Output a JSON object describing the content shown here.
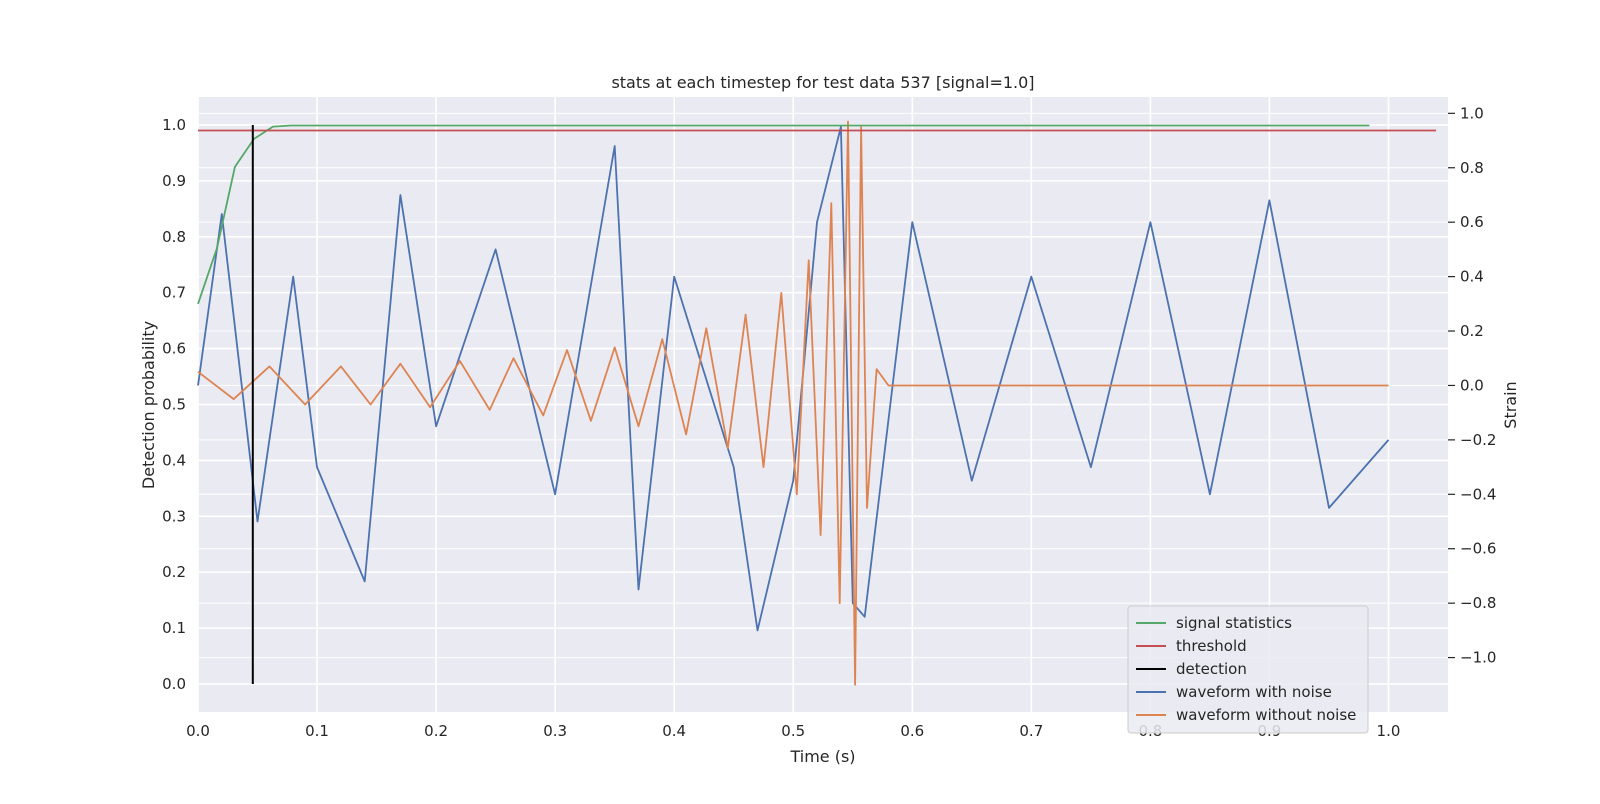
{
  "chart_data": {
    "type": "line",
    "title": "stats at each timestep for test data 537 [signal=1.0]",
    "xlabel": "Time (s)",
    "ylabel": "Detection probability",
    "y2label": "Strain",
    "xlim": [
      0.0,
      1.05
    ],
    "ylim": [
      -0.05,
      1.05
    ],
    "y2lim": [
      -1.2,
      1.06
    ],
    "xticks": [
      "0.0",
      "0.1",
      "0.2",
      "0.3",
      "0.4",
      "0.5",
      "0.6",
      "0.7",
      "0.8",
      "0.9",
      "1.0"
    ],
    "yticks": [
      "0.0",
      "0.1",
      "0.2",
      "0.3",
      "0.4",
      "0.5",
      "0.6",
      "0.7",
      "0.8",
      "0.9",
      "1.0"
    ],
    "y2ticks": [
      "−1.0",
      "−0.8",
      "−0.6",
      "−0.4",
      "−0.2",
      "0.0",
      "0.2",
      "0.4",
      "0.6",
      "0.8",
      "1.0"
    ],
    "grid": true,
    "legend_position": "lower-right",
    "background": "#eaeaf2",
    "series": [
      {
        "name": "signal statistics",
        "axis": "left",
        "color": "#55a868",
        "x": [
          0.0,
          0.016,
          0.031,
          0.047,
          0.063,
          0.078,
          0.1,
          0.3,
          0.5,
          0.7,
          0.9,
          0.984
        ],
        "y": [
          0.68,
          0.78,
          0.925,
          0.975,
          0.997,
          0.999,
          0.999,
          0.999,
          0.999,
          0.999,
          0.999,
          0.999
        ]
      },
      {
        "name": "threshold",
        "axis": "left",
        "color": "#c44e52",
        "x": [
          0.0,
          1.04
        ],
        "y": [
          0.99,
          0.99
        ]
      },
      {
        "name": "detection",
        "axis": "left",
        "color": "#000000",
        "x": [
          0.046,
          0.046
        ],
        "y": [
          0.0,
          1.0
        ]
      },
      {
        "name": "waveform with noise",
        "axis": "right",
        "color": "#4c72b0",
        "x": [
          0.0,
          0.02,
          0.05,
          0.08,
          0.1,
          0.14,
          0.17,
          0.2,
          0.25,
          0.3,
          0.35,
          0.37,
          0.4,
          0.45,
          0.47,
          0.5,
          0.52,
          0.54,
          0.55,
          0.56,
          0.6,
          0.65,
          0.7,
          0.75,
          0.8,
          0.85,
          0.9,
          0.95,
          1.0
        ],
        "y": [
          0.0,
          0.63,
          -0.5,
          0.4,
          -0.3,
          -0.72,
          0.7,
          -0.15,
          0.5,
          -0.4,
          0.88,
          -0.75,
          0.4,
          -0.3,
          -0.9,
          -0.35,
          0.6,
          0.95,
          -0.8,
          -0.85,
          0.6,
          -0.35,
          0.4,
          -0.3,
          0.6,
          -0.4,
          0.68,
          -0.45,
          -0.2
        ]
      },
      {
        "name": "waveform without noise",
        "axis": "right",
        "color": "#dd8452",
        "x": [
          0.0,
          0.03,
          0.06,
          0.09,
          0.12,
          0.145,
          0.17,
          0.195,
          0.22,
          0.245,
          0.265,
          0.29,
          0.31,
          0.33,
          0.35,
          0.37,
          0.39,
          0.41,
          0.427,
          0.445,
          0.46,
          0.475,
          0.49,
          0.503,
          0.513,
          0.523,
          0.532,
          0.539,
          0.546,
          0.552,
          0.557,
          0.562,
          0.57,
          0.58,
          1.0
        ],
        "y": [
          0.05,
          -0.05,
          0.07,
          -0.07,
          0.07,
          -0.07,
          0.08,
          -0.08,
          0.09,
          -0.09,
          0.1,
          -0.11,
          0.13,
          -0.13,
          0.14,
          -0.15,
          0.17,
          -0.18,
          0.21,
          -0.23,
          0.26,
          -0.3,
          0.34,
          -0.4,
          0.46,
          -0.55,
          0.67,
          -0.8,
          0.97,
          -1.1,
          0.95,
          -0.45,
          0.06,
          0.0,
          0.0
        ]
      }
    ]
  }
}
